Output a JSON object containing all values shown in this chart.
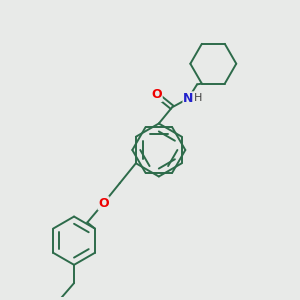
{
  "bg_color": "#e8eae8",
  "bond_color": "#2d6b4a",
  "atom_colors": {
    "O": "#ee0000",
    "N": "#2222cc",
    "H": "#444444"
  },
  "figsize": [
    3.0,
    3.0
  ],
  "dpi": 100,
  "lw": 1.4,
  "inner_ratio": 0.7
}
